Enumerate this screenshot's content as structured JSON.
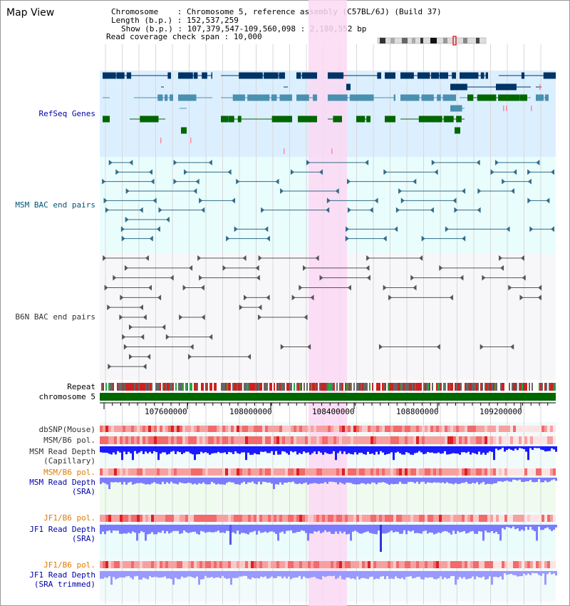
{
  "title": "Map View",
  "info": {
    "chromosome_label": "Chromosome",
    "chromosome_value": "Chromosome 5, reference assembly (C57BL/6J) (Build 37)",
    "length_label": "Length (b.p.)",
    "length_value": "152,537,259",
    "show_label": "Show (b.p.)",
    "show_value": "107,379,547-109,560,098 : 2,180,552 bp",
    "coverage_label": "Read coverage check span",
    "coverage_value": "10,000"
  },
  "tracks": {
    "refseq": "RefSeq Genes",
    "msm_bac": "MSM BAC end pairs",
    "b6n_bac": "B6N BAC end pairs",
    "repeat": "Repeat",
    "chromosome": "chromosome 5",
    "dbsnp": "dbSNP(Mouse)",
    "msm_b6_pol_1": "MSM/B6 pol.",
    "msm_read_depth_cap_1": "MSM Read Depth",
    "msm_read_depth_cap_2": "(Capillary)",
    "msm_b6_pol_2": "MSM/B6 pol.",
    "msm_read_depth_sra_1": "MSM Read Depth",
    "msm_read_depth_sra_2": "(SRA)",
    "jf1_b6_pol_1": "JF1/B6 pol.",
    "jf1_read_depth_sra_1": "JF1 Read Depth",
    "jf1_read_depth_sra_2": "(SRA)",
    "jf1_b6_pol_2": "JF1/B6 pol.",
    "jf1_read_depth_trim_1": "JF1 Read Depth",
    "jf1_read_depth_trim_2": "(SRA trimmed)"
  },
  "axis": {
    "ticks": [
      "107600000",
      "108000000",
      "108400000",
      "108800000",
      "109200000"
    ]
  },
  "colors": {
    "refseq_bg": "#dcefff",
    "bac_bg": "#e9fdfd",
    "highlight": "#fbd8f3",
    "chromosome_bar": "#006600",
    "gene_dark": "#003366",
    "gene_mid": "#4a90b0",
    "gene_green": "#006600",
    "bac_msm": "#336b88",
    "bac_b6n": "#555555",
    "depth_capillary": "#1a1aff",
    "depth_sra": "#7b7bff"
  }
}
